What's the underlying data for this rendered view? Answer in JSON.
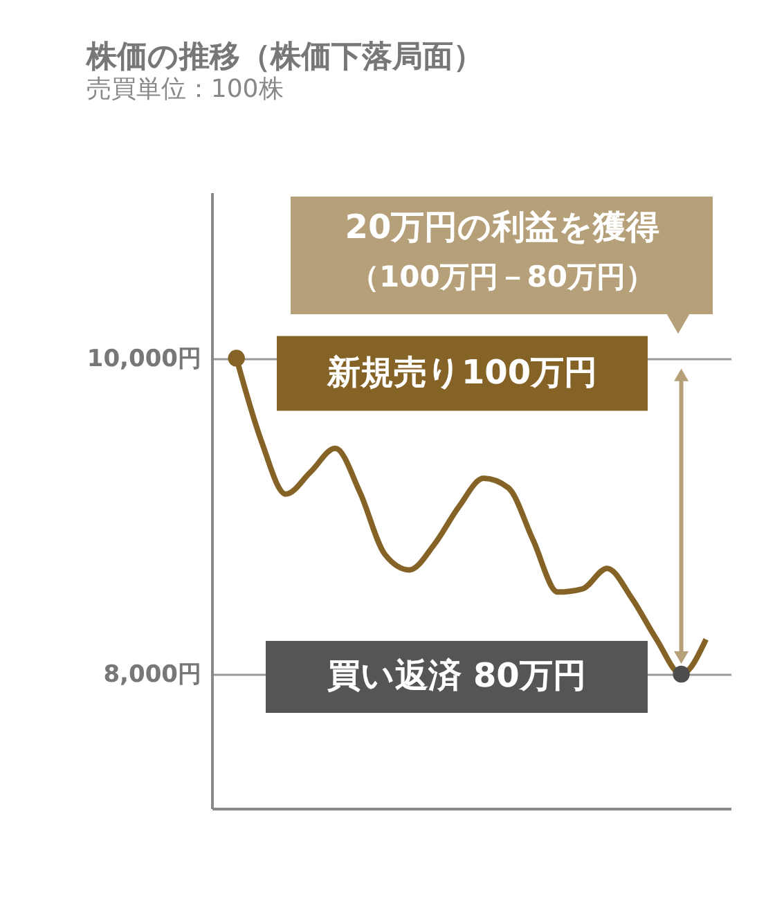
{
  "chart_data": {
    "type": "line",
    "title": "株価の推移（株価下落局面）",
    "subtitle": "売買単位：100株",
    "categories": [
      null,
      null,
      null,
      null,
      null,
      null,
      null,
      null,
      null,
      null,
      null,
      null,
      null,
      null,
      null,
      null,
      null,
      null,
      null,
      null
    ],
    "series": [
      {
        "color": "#856327",
        "values": [
          10000,
          9480,
          9140,
          9280,
          9430,
          9150,
          8760,
          8660,
          8820,
          9060,
          9240,
          9180,
          8850,
          8520,
          8540,
          8670,
          8480,
          8220,
          8000,
          8220
        ]
      },
      {
        "type": "scatter",
        "colors": [
          "#856327",
          null,
          null,
          null,
          null,
          null,
          null,
          null,
          null,
          null,
          null,
          null,
          null,
          null,
          null,
          null,
          null,
          null,
          "#4d4d4d",
          null
        ],
        "values": [
          10000,
          null,
          null,
          null,
          null,
          null,
          null,
          null,
          null,
          null,
          null,
          null,
          null,
          null,
          null,
          null,
          null,
          null,
          8000,
          null
        ]
      }
    ],
    "ylim": [
      7150,
      11050
    ],
    "yticks": [
      {
        "value": 8000,
        "label": "8,000円"
      },
      {
        "value": 10000,
        "label": "10,000円"
      }
    ],
    "grid": "y",
    "tick_labels": "y",
    "annotations": [
      "新規売り100万円",
      "買い返済 80万円",
      "20万円の利益を獲得",
      "（100万円－80万円）"
    ]
  }
}
